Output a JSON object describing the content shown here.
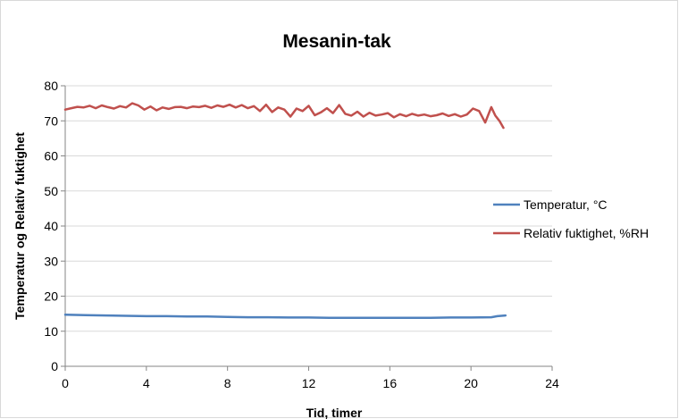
{
  "chart_data": {
    "type": "line",
    "title": "Mesanin-tak",
    "xlabel": "Tid, timer",
    "ylabel": "Temperatur og Relativ fuktighet",
    "xlim": [
      0,
      24
    ],
    "ylim": [
      0,
      80
    ],
    "xticks": [
      "0",
      "4",
      "8",
      "12",
      "16",
      "20",
      "24"
    ],
    "yticks": [
      "0",
      "10",
      "20",
      "30",
      "40",
      "50",
      "60",
      "70",
      "80"
    ],
    "grid": "horizontal",
    "legend_position": "right",
    "series": [
      {
        "name": "Temperatur, °C",
        "color": "#4f81bd",
        "x": [
          0,
          1,
          2,
          3,
          4,
          5,
          6,
          7,
          8,
          9,
          10,
          11,
          12,
          13,
          14,
          15,
          16,
          17,
          18,
          19,
          20,
          21,
          21.3,
          21.7
        ],
        "y": [
          14.7,
          14.6,
          14.5,
          14.4,
          14.3,
          14.3,
          14.2,
          14.2,
          14.1,
          14.0,
          14.0,
          13.9,
          13.9,
          13.8,
          13.8,
          13.8,
          13.8,
          13.8,
          13.8,
          13.9,
          13.9,
          14.0,
          14.3,
          14.5
        ]
      },
      {
        "name": "Relativ fuktighet, %RH",
        "color": "#c0504d",
        "x": [
          0,
          0.3,
          0.6,
          0.9,
          1.2,
          1.5,
          1.8,
          2.1,
          2.4,
          2.7,
          3.0,
          3.3,
          3.6,
          3.9,
          4.2,
          4.5,
          4.8,
          5.1,
          5.4,
          5.7,
          6.0,
          6.3,
          6.6,
          6.9,
          7.2,
          7.5,
          7.8,
          8.1,
          8.4,
          8.7,
          9.0,
          9.3,
          9.6,
          9.9,
          10.2,
          10.5,
          10.8,
          11.1,
          11.4,
          11.7,
          12.0,
          12.3,
          12.6,
          12.9,
          13.2,
          13.5,
          13.8,
          14.1,
          14.4,
          14.7,
          15.0,
          15.3,
          15.6,
          15.9,
          16.2,
          16.5,
          16.8,
          17.1,
          17.4,
          17.7,
          18.0,
          18.3,
          18.6,
          18.9,
          19.2,
          19.5,
          19.8,
          20.1,
          20.4,
          20.7,
          21.0,
          21.2,
          21.4,
          21.6
        ],
        "y": [
          73.2,
          73.6,
          74.0,
          73.8,
          74.3,
          73.6,
          74.4,
          73.9,
          73.5,
          74.2,
          73.8,
          75.0,
          74.4,
          73.2,
          74.1,
          73.0,
          73.8,
          73.4,
          73.9,
          74.0,
          73.6,
          74.1,
          73.9,
          74.3,
          73.7,
          74.4,
          74.0,
          74.6,
          73.8,
          74.5,
          73.6,
          74.2,
          72.8,
          74.6,
          72.5,
          73.8,
          73.2,
          71.2,
          73.5,
          72.8,
          74.3,
          71.6,
          72.4,
          73.6,
          72.2,
          74.5,
          72.0,
          71.5,
          72.6,
          71.2,
          72.3,
          71.5,
          71.8,
          72.2,
          71.0,
          71.9,
          71.3,
          72.0,
          71.5,
          71.8,
          71.3,
          71.6,
          72.1,
          71.4,
          71.9,
          71.2,
          71.8,
          73.5,
          72.8,
          69.5,
          73.9,
          71.5,
          70.0,
          68.0
        ]
      }
    ]
  }
}
